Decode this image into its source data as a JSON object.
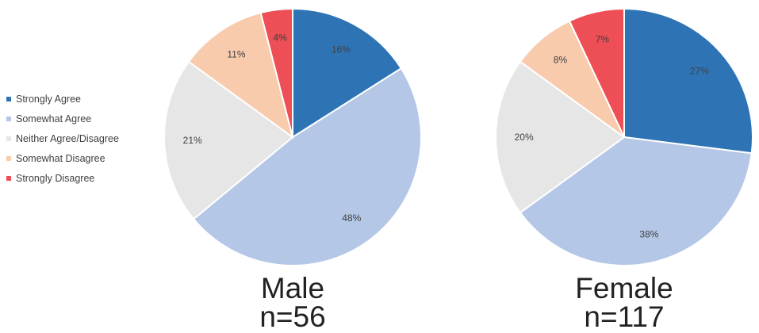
{
  "chart_data": [
    {
      "type": "pie",
      "title": "Male",
      "subtitle": "n=56",
      "categories": [
        "Strongly Agree",
        "Somewhat Agree",
        "Neither Agree/Disagree",
        "Somewhat Disagree",
        "Strongly Disagree"
      ],
      "values": [
        16,
        48,
        21,
        11,
        4
      ],
      "labels": [
        "16%",
        "48%",
        "21%",
        "11%",
        "4%"
      ],
      "colors": [
        "#2e74b5",
        "#b4c7e7",
        "#e6e6e6",
        "#f8cbad",
        "#ee4e55"
      ],
      "legend": "left"
    },
    {
      "type": "pie",
      "title": "Female",
      "subtitle": "n=117",
      "categories": [
        "Strongly Agree",
        "Somewhat Agree",
        "Neither Agree/Disagree",
        "Somewhat Disagree",
        "Strongly Disagree"
      ],
      "values": [
        27,
        38,
        20,
        8,
        7
      ],
      "labels": [
        "27%",
        "38%",
        "20%",
        "8%",
        "7%"
      ],
      "colors": [
        "#2e74b5",
        "#b4c7e7",
        "#e6e6e6",
        "#f8cbad",
        "#ee4e55"
      ],
      "legend": "left"
    }
  ]
}
